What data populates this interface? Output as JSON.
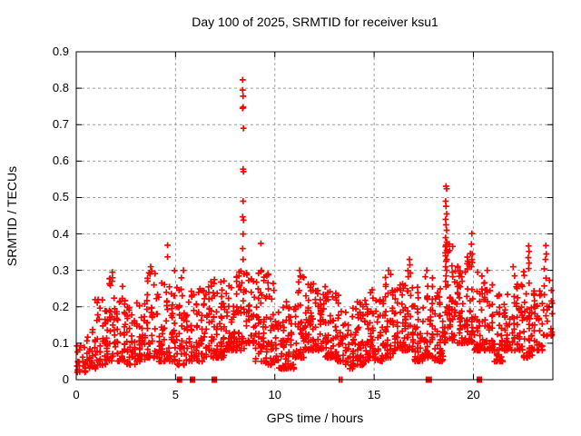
{
  "chart_data": {
    "type": "scatter",
    "title": "Day 100 of 2025, SRMTID for receiver ksu1",
    "xlabel": "GPS time / hours",
    "ylabel": "SRMTID / TECUs",
    "xlim": [
      0,
      24
    ],
    "ylim": [
      0,
      0.9
    ],
    "xticks": [
      0,
      5,
      10,
      15,
      20
    ],
    "xtick_labels": [
      "0",
      "5",
      "10",
      "15",
      "20"
    ],
    "yticks": [
      0,
      0.1,
      0.2,
      0.3,
      0.4,
      0.5,
      0.6,
      0.7,
      0.8,
      0.9
    ],
    "ytick_labels": [
      "0",
      "0.1",
      "0.2",
      "0.3",
      "0.4",
      "0.5",
      "0.6",
      "0.7",
      "0.8",
      "0.9"
    ],
    "grid": true,
    "legend": "none",
    "marker": {
      "shape": "plus",
      "color": "#ff0000",
      "size": 7
    },
    "grid_color": "#9e9e9e",
    "axis_color": "#000000",
    "series_name": "SRMTID",
    "density_bins": [
      [
        0.0,
        22,
        0.02,
        0.1
      ],
      [
        0.5,
        28,
        0.03,
        0.14
      ],
      [
        1.0,
        34,
        0.04,
        0.22
      ],
      [
        1.5,
        40,
        0.05,
        0.28
      ],
      [
        2.0,
        40,
        0.05,
        0.26
      ],
      [
        2.5,
        34,
        0.04,
        0.2
      ],
      [
        3.0,
        38,
        0.05,
        0.22
      ],
      [
        3.5,
        40,
        0.06,
        0.3
      ],
      [
        4.0,
        40,
        0.05,
        0.29
      ],
      [
        4.5,
        40,
        0.05,
        0.3
      ],
      [
        5.0,
        34,
        0.04,
        0.28
      ],
      [
        5.5,
        34,
        0.05,
        0.25
      ],
      [
        6.0,
        38,
        0.05,
        0.26
      ],
      [
        6.5,
        40,
        0.06,
        0.29
      ],
      [
        7.0,
        44,
        0.06,
        0.28
      ],
      [
        7.5,
        44,
        0.08,
        0.27
      ],
      [
        8.0,
        44,
        0.08,
        0.3
      ],
      [
        8.5,
        40,
        0.1,
        0.3
      ],
      [
        9.0,
        40,
        0.05,
        0.3
      ],
      [
        9.5,
        40,
        0.04,
        0.29
      ],
      [
        10.0,
        34,
        0.03,
        0.2
      ],
      [
        10.5,
        38,
        0.03,
        0.22
      ],
      [
        11.0,
        40,
        0.06,
        0.29
      ],
      [
        11.5,
        44,
        0.08,
        0.27
      ],
      [
        12.0,
        44,
        0.08,
        0.25
      ],
      [
        12.5,
        44,
        0.06,
        0.27
      ],
      [
        13.0,
        38,
        0.05,
        0.26
      ],
      [
        13.5,
        38,
        0.03,
        0.2
      ],
      [
        14.0,
        44,
        0.04,
        0.22
      ],
      [
        14.5,
        40,
        0.05,
        0.25
      ],
      [
        15.0,
        38,
        0.05,
        0.22
      ],
      [
        15.5,
        40,
        0.06,
        0.29
      ],
      [
        16.0,
        40,
        0.08,
        0.28
      ],
      [
        16.5,
        44,
        0.08,
        0.31
      ],
      [
        17.0,
        40,
        0.05,
        0.27
      ],
      [
        17.5,
        40,
        0.06,
        0.29
      ],
      [
        18.0,
        40,
        0.05,
        0.25
      ],
      [
        18.5,
        44,
        0.1,
        0.4
      ],
      [
        19.0,
        44,
        0.1,
        0.33
      ],
      [
        19.5,
        44,
        0.1,
        0.36
      ],
      [
        20.0,
        40,
        0.08,
        0.31
      ],
      [
        20.5,
        40,
        0.08,
        0.29
      ],
      [
        21.0,
        38,
        0.05,
        0.24
      ],
      [
        21.5,
        38,
        0.08,
        0.24
      ],
      [
        22.0,
        40,
        0.08,
        0.29
      ],
      [
        22.5,
        40,
        0.06,
        0.33
      ],
      [
        23.0,
        34,
        0.08,
        0.25
      ],
      [
        23.5,
        24,
        0.12,
        0.33
      ]
    ],
    "outlier_points": [
      [
        8.38,
        0.823
      ],
      [
        8.38,
        0.795
      ],
      [
        8.4,
        0.778
      ],
      [
        8.4,
        0.748
      ],
      [
        8.38,
        0.745
      ],
      [
        8.42,
        0.69
      ],
      [
        8.4,
        0.578
      ],
      [
        8.42,
        0.571
      ],
      [
        8.4,
        0.49
      ],
      [
        8.38,
        0.447
      ],
      [
        8.42,
        0.438
      ],
      [
        8.4,
        0.4
      ],
      [
        8.38,
        0.36
      ],
      [
        8.4,
        0.33
      ],
      [
        18.62,
        0.531
      ],
      [
        18.65,
        0.524
      ],
      [
        18.6,
        0.49
      ],
      [
        18.62,
        0.476
      ],
      [
        18.65,
        0.455
      ],
      [
        18.6,
        0.44
      ],
      [
        18.62,
        0.425
      ],
      [
        18.65,
        0.41
      ],
      [
        18.6,
        0.39
      ],
      [
        18.62,
        0.37
      ],
      [
        18.65,
        0.355
      ],
      [
        18.6,
        0.34
      ],
      [
        18.62,
        0.325
      ],
      [
        18.6,
        0.31
      ],
      [
        18.65,
        0.3
      ],
      [
        18.62,
        0.285
      ],
      [
        18.6,
        0.27
      ],
      [
        18.62,
        0.255
      ],
      [
        19.92,
        0.401
      ],
      [
        19.9,
        0.372
      ],
      [
        19.94,
        0.345
      ],
      [
        19.92,
        0.33
      ],
      [
        19.9,
        0.31
      ],
      [
        4.6,
        0.369
      ],
      [
        4.6,
        0.337
      ],
      [
        9.3,
        0.374
      ],
      [
        9.32,
        0.3
      ],
      [
        22.78,
        0.367
      ],
      [
        22.8,
        0.352
      ],
      [
        22.76,
        0.335
      ],
      [
        22.8,
        0.32
      ],
      [
        22.78,
        0.305
      ],
      [
        23.65,
        0.368
      ],
      [
        23.67,
        0.345
      ],
      [
        23.63,
        0.33
      ],
      [
        16.78,
        0.33
      ],
      [
        16.8,
        0.315
      ],
      [
        5.4,
        0.3
      ],
      [
        1.82,
        0.295
      ],
      [
        1.8,
        0.27
      ],
      [
        3.75,
        0.31
      ],
      [
        3.72,
        0.29
      ],
      [
        11.25,
        0.3
      ],
      [
        11.28,
        0.285
      ],
      [
        9.65,
        0.29
      ],
      [
        15.72,
        0.3
      ],
      [
        17.65,
        0.3
      ],
      [
        20.7,
        0.3
      ],
      [
        22.0,
        0.31
      ],
      [
        0.95,
        0.22
      ],
      [
        1.1,
        0.22
      ]
    ],
    "zero_markers": {
      "shape": "square",
      "color": "#ff0000",
      "points": [
        {
          "x": 5.2,
          "w": 6
        },
        {
          "x": 5.85,
          "w": 6
        },
        {
          "x": 6.95,
          "w": 6
        },
        {
          "x": 13.25,
          "w": 2
        },
        {
          "x": 13.37,
          "w": 2
        },
        {
          "x": 17.75,
          "w": 7
        },
        {
          "x": 20.3,
          "w": 6
        }
      ]
    }
  }
}
